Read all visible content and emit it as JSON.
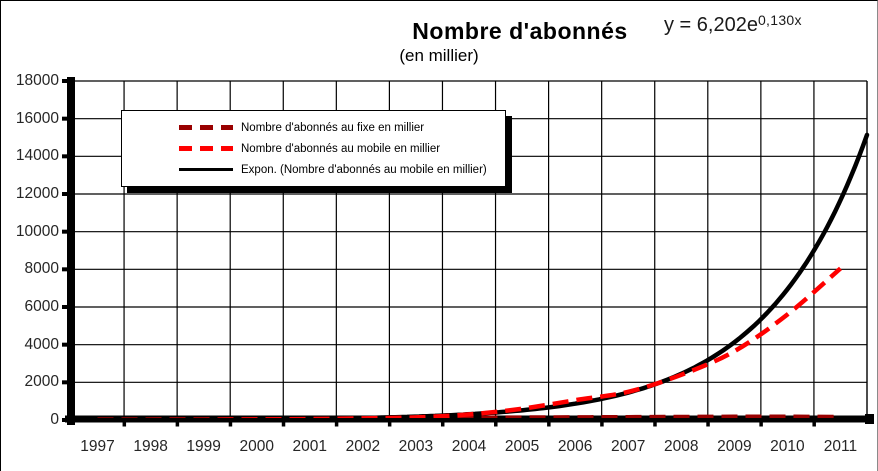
{
  "chart_data": {
    "type": "line",
    "title": "Nombre d'abonnés",
    "subtitle": "(en millier)",
    "equation": {
      "base": "y = 6,202e",
      "exponent": "0,130x"
    },
    "categories": [
      "1997",
      "1998",
      "1999",
      "2000",
      "2001",
      "2002",
      "2003",
      "2004",
      "2005",
      "2006",
      "2007",
      "2008",
      "2009",
      "2010",
      "2011"
    ],
    "series": [
      {
        "name": "Nombre d'abonnés au fixe en millier",
        "color": "#990000",
        "style": "dashed",
        "values": [
          15,
          18,
          22,
          28,
          35,
          50,
          70,
          110,
          130,
          140,
          150,
          160,
          170,
          170,
          160
        ]
      },
      {
        "name": "Nombre d'abonnés au mobile en millier",
        "color": "#ff0000",
        "style": "dashed",
        "values": [
          5,
          10,
          18,
          30,
          50,
          85,
          140,
          300,
          600,
          1050,
          1500,
          2400,
          3650,
          5600,
          8050
        ]
      },
      {
        "name": "Expon. (Nombre d'abonnés au mobile en millier)",
        "color": "#000000",
        "style": "solid",
        "trendline": {
          "type": "exponential",
          "a": 6.202,
          "b": 0.13,
          "periods": 60
        }
      }
    ],
    "xlabel": "",
    "ylabel": "",
    "ylim": [
      0,
      18000
    ],
    "ytick_step": 2000,
    "grid": true,
    "legend_position": "top-left",
    "axis_color": "#000000",
    "grid_color": "#000000"
  }
}
